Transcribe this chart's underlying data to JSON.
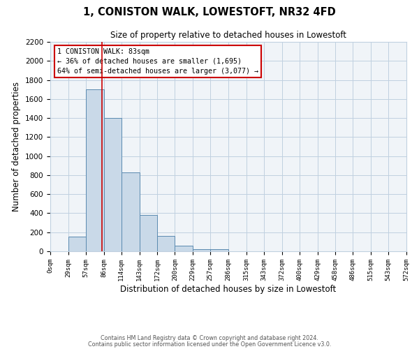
{
  "title": "1, CONISTON WALK, LOWESTOFT, NR32 4FD",
  "subtitle": "Size of property relative to detached houses in Lowestoft",
  "xlabel": "Distribution of detached houses by size in Lowestoft",
  "ylabel": "Number of detached properties",
  "bar_heights": [
    0,
    155,
    1700,
    1400,
    830,
    385,
    160,
    60,
    25,
    20,
    0,
    0,
    0,
    0,
    0,
    0,
    0,
    0,
    0,
    0
  ],
  "bin_edges": [
    0,
    29,
    57,
    86,
    114,
    143,
    172,
    200,
    229,
    257,
    286,
    315,
    343,
    372,
    400,
    429,
    458,
    486,
    515,
    543,
    572
  ],
  "tick_labels": [
    "0sqm",
    "29sqm",
    "57sqm",
    "86sqm",
    "114sqm",
    "143sqm",
    "172sqm",
    "200sqm",
    "229sqm",
    "257sqm",
    "286sqm",
    "315sqm",
    "343sqm",
    "372sqm",
    "400sqm",
    "429sqm",
    "458sqm",
    "486sqm",
    "515sqm",
    "543sqm",
    "572sqm"
  ],
  "property_line_x": 83,
  "bar_facecolor": "#c9d9e8",
  "bar_edgecolor": "#5a8ab0",
  "vline_color": "#cc0000",
  "ylim": [
    0,
    2200
  ],
  "yticks": [
    0,
    200,
    400,
    600,
    800,
    1000,
    1200,
    1400,
    1600,
    1800,
    2000,
    2200
  ],
  "annotation_title": "1 CONISTON WALK: 83sqm",
  "annotation_line1": "← 36% of detached houses are smaller (1,695)",
  "annotation_line2": "64% of semi-detached houses are larger (3,077) →",
  "footer1": "Contains HM Land Registry data © Crown copyright and database right 2024.",
  "footer2": "Contains public sector information licensed under the Open Government Licence v3.0.",
  "bg_color": "#f0f4f8",
  "grid_color": "#c0d0e0"
}
